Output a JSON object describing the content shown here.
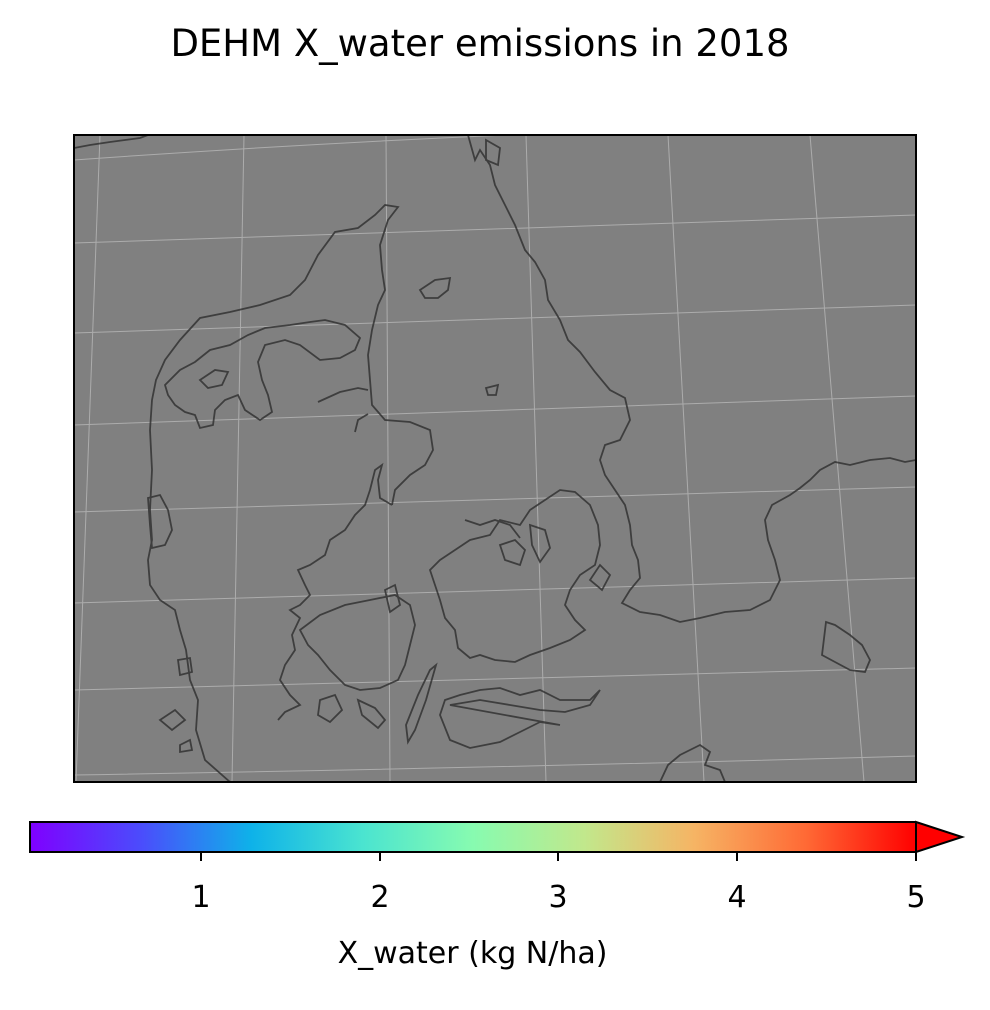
{
  "title": "DEHM X_water emissions in 2018",
  "colorbar": {
    "label": "X_water (kg N/ha)",
    "ticks": [
      "1",
      "2",
      "3",
      "4",
      "5"
    ],
    "vmin": 0.05,
    "vmax": 5,
    "extend": "max",
    "colormap": "rainbow",
    "colors": [
      "#7f00ff",
      "#4b4cfc",
      "#0eb2e9",
      "#4ae4d0",
      "#87fbb0",
      "#c1e88c",
      "#f6b464",
      "#ff6a35",
      "#ff0000"
    ]
  },
  "map": {
    "background": "#808080",
    "coastline_color": "#333333",
    "gridline_color": "#bfbfbf"
  }
}
